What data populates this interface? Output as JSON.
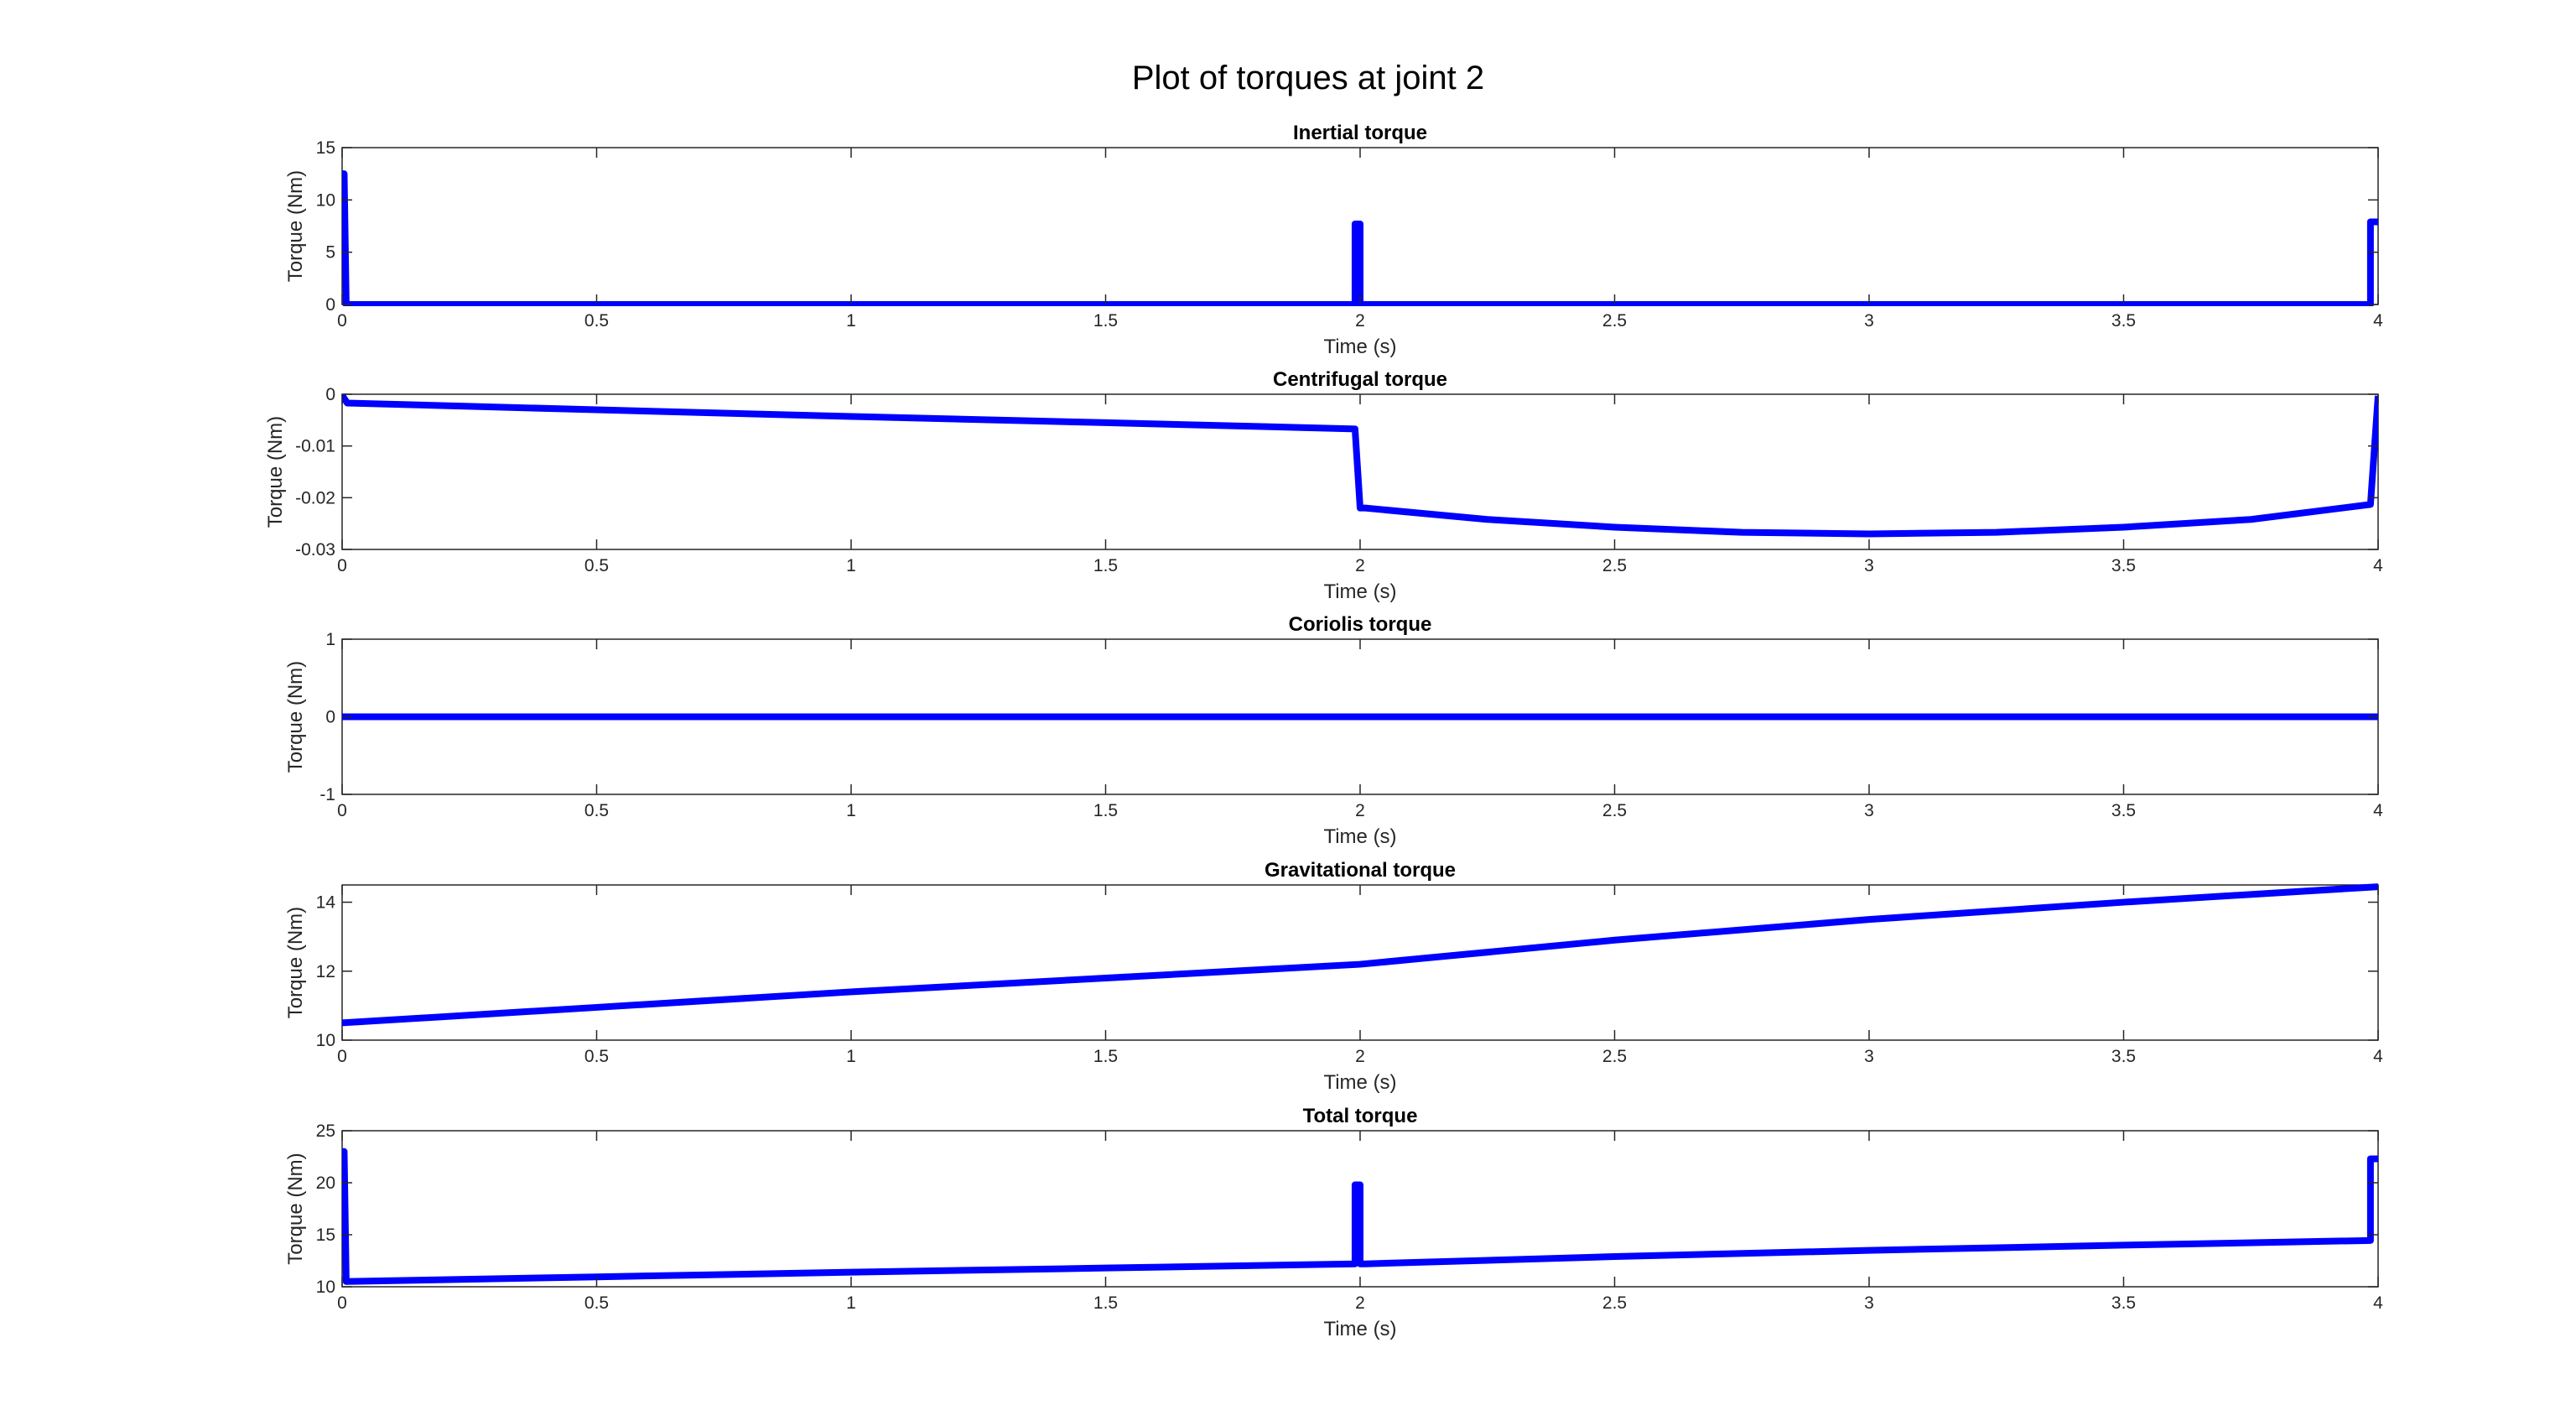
{
  "figure": {
    "title": "Plot of torques at joint 2",
    "line_color": "#0000FF"
  },
  "chart_data": [
    {
      "type": "line",
      "title": "Inertial torque",
      "xlabel": "Time (s)",
      "ylabel": "Torque (Nm)",
      "xlim": [
        0,
        4
      ],
      "ylim": [
        0,
        15
      ],
      "xticks": [
        0,
        0.5,
        1,
        1.5,
        2,
        2.5,
        3,
        3.5,
        4
      ],
      "xtick_labels": [
        "0",
        "0.5",
        "1",
        "1.5",
        "2",
        "2.5",
        "3",
        "3.5",
        "4"
      ],
      "yticks": [
        0,
        5,
        10,
        15
      ],
      "ytick_labels": [
        "0",
        "5",
        "10",
        "15"
      ],
      "grid": false,
      "series": [
        {
          "x": [
            0,
            0.004,
            0.008,
            1.99,
            1.99,
            2.0,
            2.0,
            2.01,
            3.985,
            3.985,
            4.0
          ],
          "y": [
            12.5,
            12.5,
            0,
            0,
            7.7,
            7.7,
            0,
            0,
            0,
            7.9,
            7.9
          ]
        }
      ]
    },
    {
      "type": "line",
      "title": "Centrifugal torque",
      "xlabel": "Time (s)",
      "ylabel": "Torque (Nm)",
      "xlim": [
        0,
        4
      ],
      "ylim": [
        -0.03,
        0
      ],
      "xticks": [
        0,
        0.5,
        1,
        1.5,
        2,
        2.5,
        3,
        3.5,
        4
      ],
      "xtick_labels": [
        "0",
        "0.5",
        "1",
        "1.5",
        "2",
        "2.5",
        "3",
        "3.5",
        "4"
      ],
      "yticks": [
        -0.03,
        -0.02,
        -0.01,
        0
      ],
      "ytick_labels": [
        "-0.03",
        "-0.02",
        "-0.01",
        "0"
      ],
      "grid": false,
      "series": [
        {
          "x": [
            0,
            0.01,
            0.5,
            1.0,
            1.5,
            1.99,
            2.0,
            2.01,
            2.25,
            2.5,
            2.75,
            3.0,
            3.25,
            3.5,
            3.75,
            3.985,
            4.0
          ],
          "y": [
            -0.0002,
            -0.0017,
            -0.003,
            -0.0043,
            -0.0055,
            -0.0067,
            -0.022,
            -0.022,
            -0.0242,
            -0.0257,
            -0.0267,
            -0.027,
            -0.0267,
            -0.0257,
            -0.0242,
            -0.0213,
            -0.0003
          ]
        }
      ]
    },
    {
      "type": "line",
      "title": "Coriolis torque",
      "xlabel": "Time (s)",
      "ylabel": "Torque (Nm)",
      "xlim": [
        0,
        4
      ],
      "ylim": [
        -1,
        1
      ],
      "xticks": [
        0,
        0.5,
        1,
        1.5,
        2,
        2.5,
        3,
        3.5,
        4
      ],
      "xtick_labels": [
        "0",
        "0.5",
        "1",
        "1.5",
        "2",
        "2.5",
        "3",
        "3.5",
        "4"
      ],
      "yticks": [
        -1,
        0,
        1
      ],
      "ytick_labels": [
        "-1",
        "0",
        "1"
      ],
      "grid": false,
      "series": [
        {
          "x": [
            0,
            4
          ],
          "y": [
            0,
            0
          ]
        }
      ]
    },
    {
      "type": "line",
      "title": "Gravitational torque",
      "xlabel": "Time (s)",
      "ylabel": "Torque (Nm)",
      "xlim": [
        0,
        4
      ],
      "ylim": [
        10,
        14.5
      ],
      "xticks": [
        0,
        0.5,
        1,
        1.5,
        2,
        2.5,
        3,
        3.5,
        4
      ],
      "xtick_labels": [
        "0",
        "0.5",
        "1",
        "1.5",
        "2",
        "2.5",
        "3",
        "3.5",
        "4"
      ],
      "yticks": [
        10,
        12,
        14
      ],
      "ytick_labels": [
        "10",
        "12",
        "14"
      ],
      "grid": false,
      "series": [
        {
          "x": [
            0,
            0.5,
            1.0,
            1.5,
            2.0,
            2.5,
            3.0,
            3.5,
            4.0
          ],
          "y": [
            10.5,
            10.95,
            11.4,
            11.8,
            12.2,
            12.9,
            13.5,
            14.0,
            14.45
          ]
        }
      ]
    },
    {
      "type": "line",
      "title": "Total torque",
      "xlabel": "Time (s)",
      "ylabel": "Torque (Nm)",
      "xlim": [
        0,
        4
      ],
      "ylim": [
        10,
        25
      ],
      "xticks": [
        0,
        0.5,
        1,
        1.5,
        2,
        2.5,
        3,
        3.5,
        4
      ],
      "xtick_labels": [
        "0",
        "0.5",
        "1",
        "1.5",
        "2",
        "2.5",
        "3",
        "3.5",
        "4"
      ],
      "yticks": [
        10,
        15,
        20,
        25
      ],
      "ytick_labels": [
        "10",
        "15",
        "20",
        "25"
      ],
      "grid": false,
      "series": [
        {
          "x": [
            0,
            0.004,
            0.008,
            0.5,
            1.0,
            1.5,
            1.99,
            1.99,
            2.0,
            2.0,
            2.01,
            2.5,
            3.0,
            3.5,
            3.985,
            3.985,
            4.0
          ],
          "y": [
            23.0,
            23.0,
            10.5,
            10.95,
            11.4,
            11.8,
            12.2,
            19.8,
            19.8,
            12.2,
            12.2,
            12.9,
            13.5,
            14.0,
            14.45,
            22.3,
            22.3
          ]
        }
      ]
    }
  ]
}
